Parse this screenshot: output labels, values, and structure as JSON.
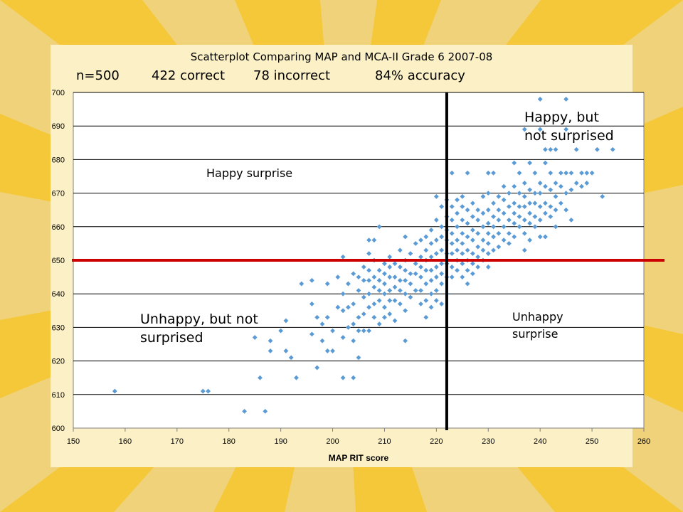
{
  "title": "Scatterplot Comparing MAP and MCA-II Grade 6 2007-08",
  "stats": {
    "n": "n=500",
    "correct": "422 correct",
    "incorrect": "78 incorrect",
    "accuracy": "84% accuracy"
  },
  "chart_data": {
    "type": "scatter",
    "title": "Scatterplot Comparing MAP and MCA-II Grade 6 2007-08",
    "xlabel": "MAP RIT score",
    "ylabel": "",
    "xlim": [
      150,
      260
    ],
    "ylim": [
      600,
      700
    ],
    "xticks": [
      150,
      160,
      170,
      180,
      190,
      200,
      210,
      220,
      230,
      240,
      250,
      260
    ],
    "yticks": [
      600,
      610,
      620,
      630,
      640,
      650,
      660,
      670,
      680,
      690,
      700
    ],
    "grid": "horizontal",
    "colors": {
      "points": "#5b9bd5",
      "horizontal_cut": "#cc0000",
      "vertical_cut": "#000000",
      "background": "#f0d27a",
      "panel": "#fbf0c6"
    },
    "reference_lines": {
      "y": 650,
      "x": 222
    },
    "annotations": [
      {
        "text": "Happy, but\nnot surprised",
        "quadrant": "top-right"
      },
      {
        "text": "Happy surprise",
        "quadrant": "top-left"
      },
      {
        "text": "Unhappy, but not\nsurprised",
        "quadrant": "bottom-left"
      },
      {
        "text": "Unhappy\nsurprise",
        "quadrant": "bottom-right"
      }
    ],
    "series": [
      {
        "points": [
          [
            158,
            611
          ],
          [
            175,
            611
          ],
          [
            176,
            611
          ],
          [
            183,
            605
          ],
          [
            187,
            605
          ],
          [
            186,
            615
          ],
          [
            185,
            627
          ],
          [
            188,
            623
          ],
          [
            188,
            626
          ],
          [
            190,
            629
          ],
          [
            191,
            632
          ],
          [
            191,
            623
          ],
          [
            192,
            621
          ],
          [
            193,
            615
          ],
          [
            194,
            643
          ],
          [
            196,
            628
          ],
          [
            196,
            637
          ],
          [
            196,
            644
          ],
          [
            197,
            618
          ],
          [
            197,
            633
          ],
          [
            198,
            626
          ],
          [
            198,
            631
          ],
          [
            199,
            623
          ],
          [
            199,
            633
          ],
          [
            199,
            643
          ],
          [
            200,
            623
          ],
          [
            200,
            629
          ],
          [
            201,
            636
          ],
          [
            201,
            645
          ],
          [
            202,
            615
          ],
          [
            202,
            627
          ],
          [
            202,
            635
          ],
          [
            202,
            640
          ],
          [
            202,
            651
          ],
          [
            203,
            630
          ],
          [
            203,
            636
          ],
          [
            203,
            643
          ],
          [
            204,
            615
          ],
          [
            204,
            626
          ],
          [
            204,
            631
          ],
          [
            204,
            637
          ],
          [
            204,
            646
          ],
          [
            205,
            621
          ],
          [
            205,
            629
          ],
          [
            205,
            633
          ],
          [
            205,
            641
          ],
          [
            205,
            645
          ],
          [
            206,
            629
          ],
          [
            206,
            634
          ],
          [
            206,
            639
          ],
          [
            206,
            644
          ],
          [
            206,
            648
          ],
          [
            207,
            629
          ],
          [
            207,
            636
          ],
          [
            207,
            640
          ],
          [
            207,
            644
          ],
          [
            207,
            647
          ],
          [
            207,
            652
          ],
          [
            207,
            656
          ],
          [
            208,
            633
          ],
          [
            208,
            637
          ],
          [
            208,
            642
          ],
          [
            208,
            645
          ],
          [
            208,
            650
          ],
          [
            208,
            656
          ],
          [
            209,
            631
          ],
          [
            209,
            638
          ],
          [
            209,
            641
          ],
          [
            209,
            644
          ],
          [
            209,
            647
          ],
          [
            209,
            660
          ],
          [
            210,
            633
          ],
          [
            210,
            636
          ],
          [
            210,
            640
          ],
          [
            210,
            643
          ],
          [
            210,
            646
          ],
          [
            210,
            649
          ],
          [
            211,
            634
          ],
          [
            211,
            638
          ],
          [
            211,
            641
          ],
          [
            211,
            645
          ],
          [
            211,
            648
          ],
          [
            211,
            651
          ],
          [
            212,
            632
          ],
          [
            212,
            638
          ],
          [
            212,
            642
          ],
          [
            212,
            645
          ],
          [
            212,
            649
          ],
          [
            213,
            637
          ],
          [
            213,
            641
          ],
          [
            213,
            644
          ],
          [
            213,
            648
          ],
          [
            213,
            653
          ],
          [
            214,
            626
          ],
          [
            214,
            635
          ],
          [
            214,
            640
          ],
          [
            214,
            644
          ],
          [
            214,
            647
          ],
          [
            214,
            650
          ],
          [
            214,
            657
          ],
          [
            215,
            639
          ],
          [
            215,
            643
          ],
          [
            215,
            646
          ],
          [
            215,
            652
          ],
          [
            216,
            641
          ],
          [
            216,
            646
          ],
          [
            216,
            649
          ],
          [
            216,
            655
          ],
          [
            217,
            637
          ],
          [
            217,
            641
          ],
          [
            217,
            645
          ],
          [
            217,
            648
          ],
          [
            217,
            651
          ],
          [
            217,
            656
          ],
          [
            218,
            633
          ],
          [
            218,
            638
          ],
          [
            218,
            643
          ],
          [
            218,
            647
          ],
          [
            218,
            650
          ],
          [
            218,
            653
          ],
          [
            218,
            657
          ],
          [
            219,
            636
          ],
          [
            219,
            640
          ],
          [
            219,
            644
          ],
          [
            219,
            647
          ],
          [
            219,
            651
          ],
          [
            219,
            655
          ],
          [
            219,
            659
          ],
          [
            220,
            638
          ],
          [
            220,
            641
          ],
          [
            220,
            645
          ],
          [
            220,
            648
          ],
          [
            220,
            652
          ],
          [
            220,
            656
          ],
          [
            220,
            662
          ],
          [
            220,
            669
          ],
          [
            221,
            637
          ],
          [
            221,
            643
          ],
          [
            221,
            646
          ],
          [
            221,
            649
          ],
          [
            221,
            653
          ],
          [
            221,
            657
          ],
          [
            221,
            660
          ],
          [
            221,
            666
          ],
          [
            222,
            640
          ],
          [
            222,
            645
          ],
          [
            222,
            649
          ],
          [
            222,
            652
          ],
          [
            222,
            656
          ],
          [
            222,
            659
          ],
          [
            222,
            663
          ],
          [
            222,
            668
          ],
          [
            223,
            645
          ],
          [
            223,
            648
          ],
          [
            223,
            652
          ],
          [
            223,
            655
          ],
          [
            223,
            658
          ],
          [
            223,
            662
          ],
          [
            223,
            666
          ],
          [
            223,
            676
          ],
          [
            224,
            647
          ],
          [
            224,
            650
          ],
          [
            224,
            653
          ],
          [
            224,
            656
          ],
          [
            224,
            660
          ],
          [
            224,
            664
          ],
          [
            224,
            668
          ],
          [
            225,
            645
          ],
          [
            225,
            649
          ],
          [
            225,
            652
          ],
          [
            225,
            655
          ],
          [
            225,
            658
          ],
          [
            225,
            662
          ],
          [
            225,
            666
          ],
          [
            225,
            669
          ],
          [
            226,
            643
          ],
          [
            226,
            647
          ],
          [
            226,
            650
          ],
          [
            226,
            653
          ],
          [
            226,
            657
          ],
          [
            226,
            661
          ],
          [
            226,
            665
          ],
          [
            226,
            676
          ],
          [
            227,
            646
          ],
          [
            227,
            649
          ],
          [
            227,
            652
          ],
          [
            227,
            656
          ],
          [
            227,
            659
          ],
          [
            227,
            663
          ],
          [
            227,
            667
          ],
          [
            228,
            648
          ],
          [
            228,
            651
          ],
          [
            228,
            654
          ],
          [
            228,
            658
          ],
          [
            228,
            662
          ],
          [
            228,
            665
          ],
          [
            229,
            650
          ],
          [
            229,
            653
          ],
          [
            229,
            656
          ],
          [
            229,
            660
          ],
          [
            229,
            664
          ],
          [
            229,
            669
          ],
          [
            230,
            648
          ],
          [
            230,
            652
          ],
          [
            230,
            655
          ],
          [
            230,
            658
          ],
          [
            230,
            661
          ],
          [
            230,
            665
          ],
          [
            230,
            670
          ],
          [
            230,
            676
          ],
          [
            231,
            653
          ],
          [
            231,
            657
          ],
          [
            231,
            660
          ],
          [
            231,
            663
          ],
          [
            231,
            667
          ],
          [
            231,
            676
          ],
          [
            232,
            654
          ],
          [
            232,
            658
          ],
          [
            232,
            662
          ],
          [
            232,
            665
          ],
          [
            232,
            669
          ],
          [
            233,
            656
          ],
          [
            233,
            660
          ],
          [
            233,
            664
          ],
          [
            233,
            668
          ],
          [
            233,
            672
          ],
          [
            234,
            655
          ],
          [
            234,
            658
          ],
          [
            234,
            662
          ],
          [
            234,
            666
          ],
          [
            234,
            670
          ],
          [
            235,
            657
          ],
          [
            235,
            661
          ],
          [
            235,
            664
          ],
          [
            235,
            667
          ],
          [
            235,
            672
          ],
          [
            235,
            679
          ],
          [
            236,
            660
          ],
          [
            236,
            663
          ],
          [
            236,
            666
          ],
          [
            236,
            670
          ],
          [
            236,
            676
          ],
          [
            237,
            653
          ],
          [
            237,
            658
          ],
          [
            237,
            662
          ],
          [
            237,
            666
          ],
          [
            237,
            669
          ],
          [
            237,
            673
          ],
          [
            237,
            689
          ],
          [
            238,
            656
          ],
          [
            238,
            661
          ],
          [
            238,
            664
          ],
          [
            238,
            667
          ],
          [
            238,
            671
          ],
          [
            238,
            679
          ],
          [
            239,
            660
          ],
          [
            239,
            663
          ],
          [
            239,
            667
          ],
          [
            239,
            670
          ],
          [
            239,
            676
          ],
          [
            240,
            657
          ],
          [
            240,
            662
          ],
          [
            240,
            666
          ],
          [
            240,
            670
          ],
          [
            240,
            673
          ],
          [
            240,
            689
          ],
          [
            240,
            698
          ],
          [
            241,
            657
          ],
          [
            241,
            664
          ],
          [
            241,
            667
          ],
          [
            241,
            672
          ],
          [
            241,
            679
          ],
          [
            241,
            683
          ],
          [
            242,
            663
          ],
          [
            242,
            666
          ],
          [
            242,
            671
          ],
          [
            242,
            676
          ],
          [
            242,
            683
          ],
          [
            243,
            660
          ],
          [
            243,
            665
          ],
          [
            243,
            669
          ],
          [
            243,
            673
          ],
          [
            243,
            683
          ],
          [
            244,
            667
          ],
          [
            244,
            672
          ],
          [
            244,
            676
          ],
          [
            245,
            665
          ],
          [
            245,
            670
          ],
          [
            245,
            676
          ],
          [
            245,
            689
          ],
          [
            245,
            698
          ],
          [
            246,
            662
          ],
          [
            246,
            671
          ],
          [
            246,
            676
          ],
          [
            247,
            673
          ],
          [
            247,
            683
          ],
          [
            248,
            672
          ],
          [
            248,
            676
          ],
          [
            249,
            673
          ],
          [
            249,
            676
          ],
          [
            250,
            676
          ],
          [
            251,
            683
          ],
          [
            252,
            669
          ],
          [
            254,
            683
          ]
        ]
      }
    ]
  }
}
